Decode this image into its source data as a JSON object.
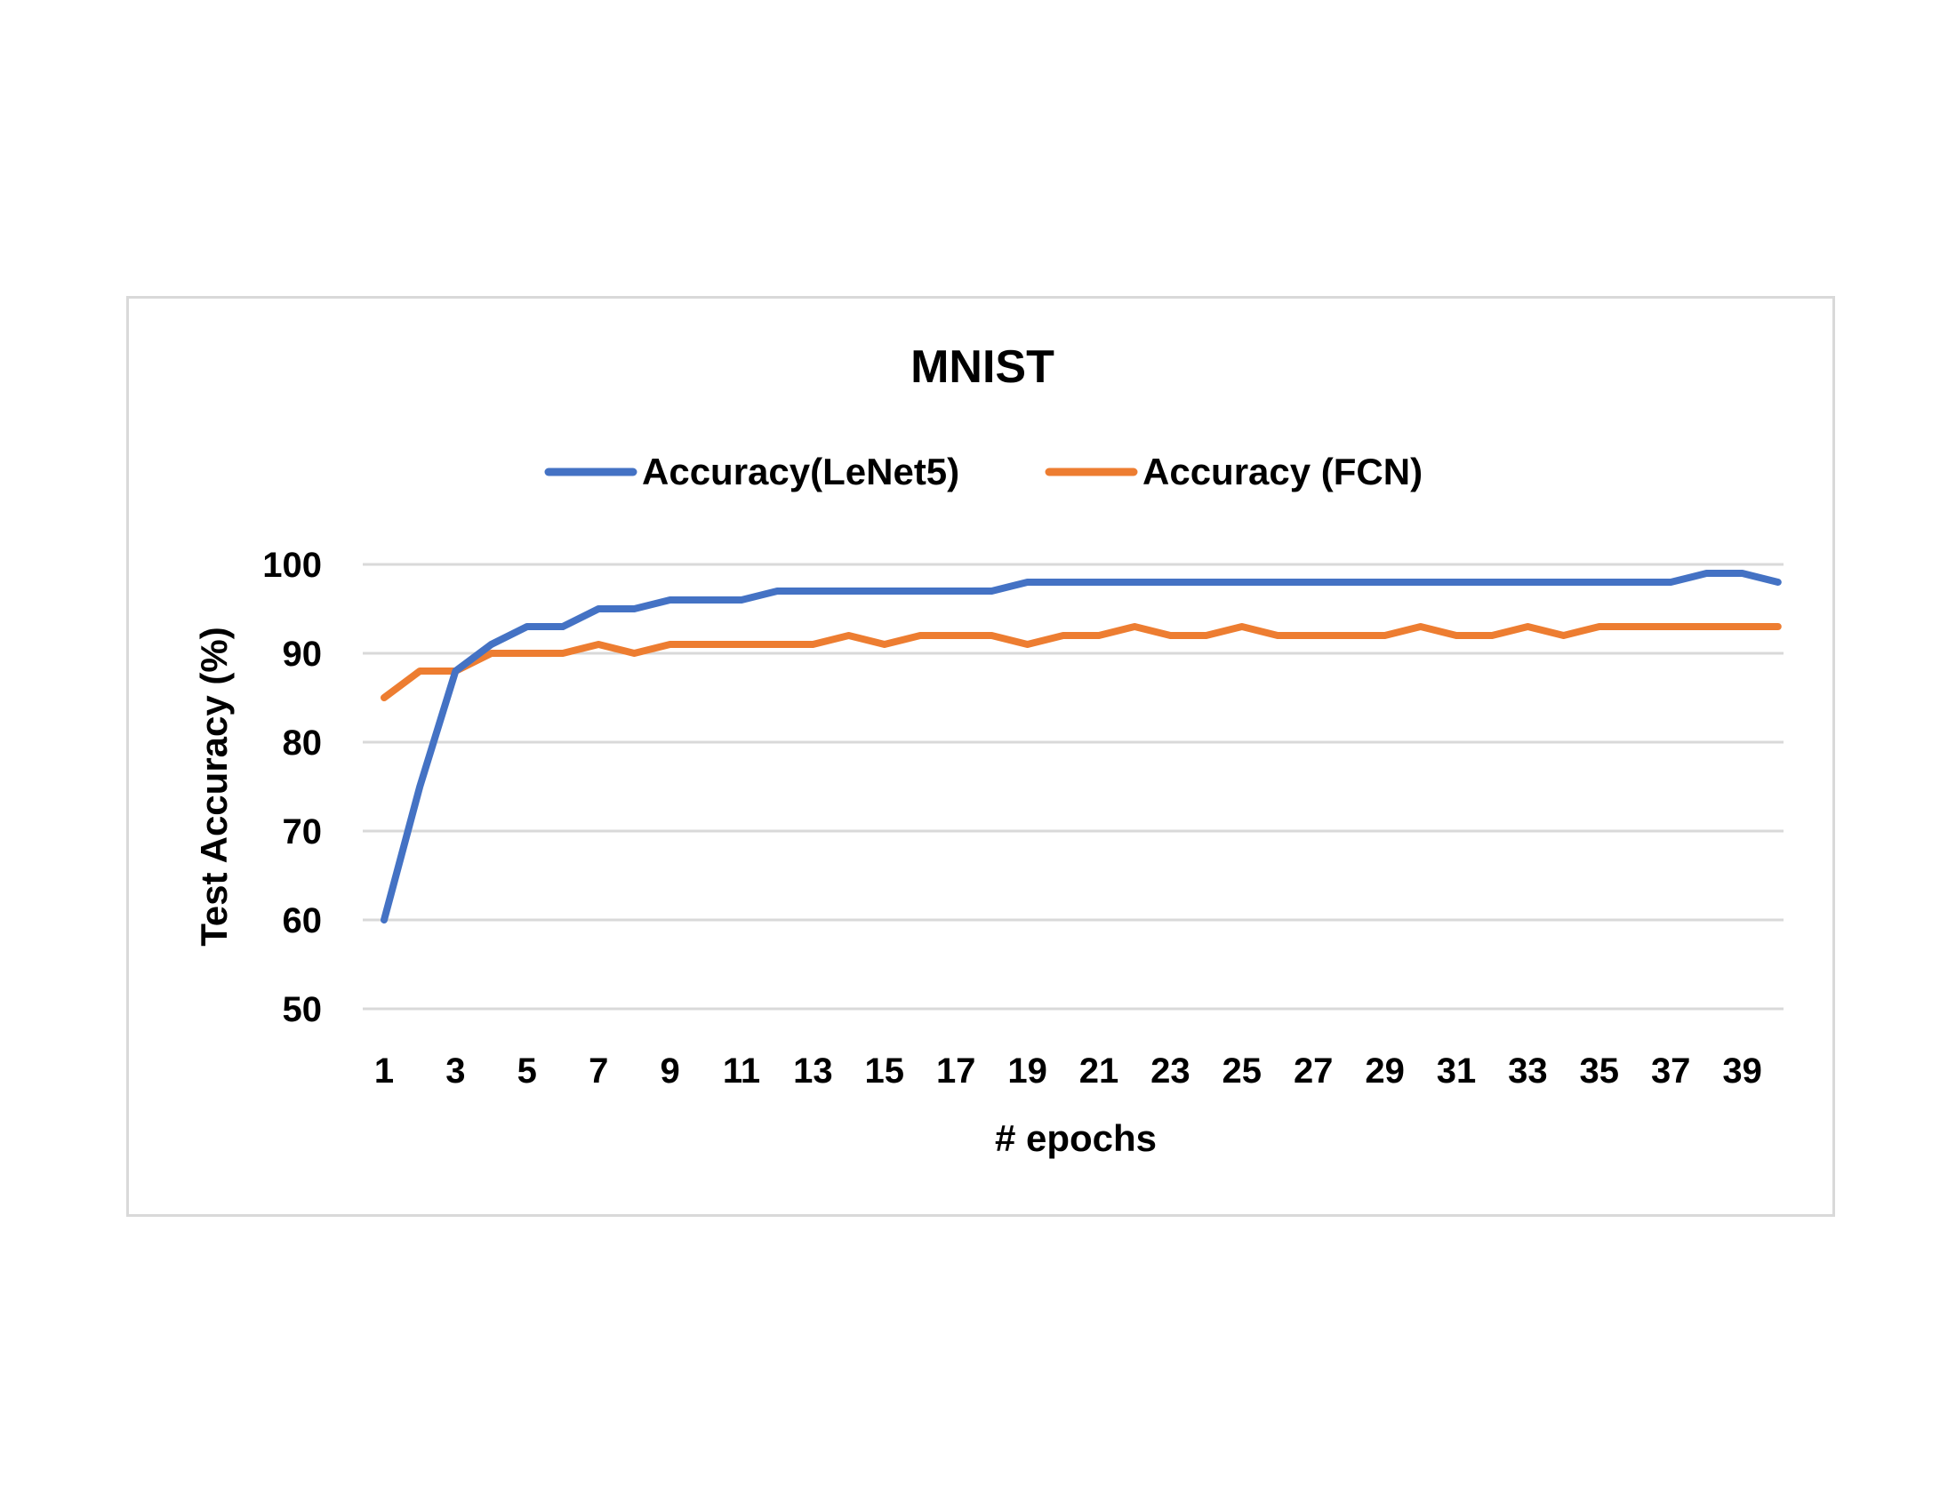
{
  "chart_data": {
    "type": "line",
    "title": "MNIST",
    "xlabel": "# epochs",
    "ylabel": "Test Accuracy (%)",
    "ylim": [
      50,
      100
    ],
    "yticks": [
      "50",
      "60",
      "70",
      "80",
      "90",
      "100"
    ],
    "x": [
      1,
      2,
      3,
      4,
      5,
      6,
      7,
      8,
      9,
      10,
      11,
      12,
      13,
      14,
      15,
      16,
      17,
      18,
      19,
      20,
      21,
      22,
      23,
      24,
      25,
      26,
      27,
      28,
      29,
      30,
      31,
      32,
      33,
      34,
      35,
      36,
      37,
      38,
      39,
      40
    ],
    "xtick_labels": [
      "1",
      "3",
      "5",
      "7",
      "9",
      "11",
      "13",
      "15",
      "17",
      "19",
      "21",
      "23",
      "25",
      "27",
      "29",
      "31",
      "33",
      "35",
      "37",
      "39"
    ],
    "grid": true,
    "legend_position": "top",
    "series": [
      {
        "name": "Accuracy(LeNet5)",
        "color": "#4472c4",
        "values": [
          60,
          75,
          88,
          91,
          93,
          93,
          95,
          95,
          96,
          96,
          96,
          97,
          97,
          97,
          97,
          97,
          97,
          97,
          98,
          98,
          98,
          98,
          98,
          98,
          98,
          98,
          98,
          98,
          98,
          98,
          98,
          98,
          98,
          98,
          98,
          98,
          98,
          99,
          99,
          98
        ]
      },
      {
        "name": "Accuracy (FCN)",
        "color": "#ed7d31",
        "values": [
          85,
          88,
          88,
          90,
          90,
          90,
          91,
          90,
          91,
          91,
          91,
          91,
          91,
          92,
          91,
          92,
          92,
          92,
          91,
          92,
          92,
          93,
          92,
          92,
          93,
          92,
          92,
          92,
          92,
          93,
          92,
          92,
          93,
          92,
          93,
          93,
          93,
          93,
          93,
          93
        ]
      }
    ]
  }
}
